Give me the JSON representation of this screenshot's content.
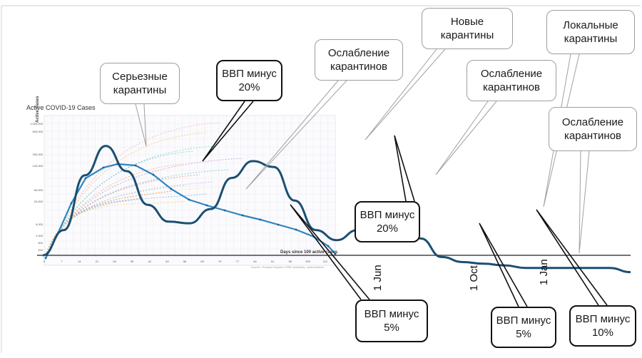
{
  "chart_data": {
    "type": "line",
    "title": "Active COVID-19 Cases",
    "inset": {
      "ylabel": "Active Cases",
      "xlabel": "Days since 100 active cases",
      "y_ticks": [
        "1,000,000",
        "500,000",
        "200,000",
        "100,000",
        "50,000",
        "20,000",
        "5,000",
        "1,000",
        "500",
        "200"
      ],
      "x_ticks": [
        "0",
        "7",
        "14",
        "21",
        "28",
        "35",
        "42",
        "49",
        "56",
        "63",
        "70",
        "77",
        "84",
        "91",
        "98",
        "105",
        "112"
      ],
      "source": "Source: Thomas Hopkins CSSE worldwide, worldometers"
    },
    "date_labels": [
      "1 Jun",
      "1 Oct",
      "1 Jan"
    ],
    "series": [
      {
        "role": "main-scenario",
        "color": "#1b4f72",
        "x": [
          0,
          30,
          60,
          90,
          120,
          150,
          180,
          210,
          240,
          270,
          300,
          330,
          360,
          390,
          420,
          450,
          480,
          510,
          540,
          570,
          600,
          630,
          660,
          690,
          720,
          750,
          780,
          810,
          840
        ],
        "y": [
          0,
          0.3,
          0.95,
          1.3,
          1.0,
          0.6,
          0.4,
          0.38,
          0.55,
          0.92,
          1.12,
          1.05,
          0.65,
          0.3,
          0.18,
          0.3,
          0.4,
          0.4,
          0.2,
          -0.02,
          -0.08,
          -0.1,
          -0.12,
          -0.15,
          -0.15,
          -0.15,
          -0.15,
          -0.15,
          -0.2
        ]
      },
      {
        "role": "inset-decline",
        "color": "#2e86c1"
      },
      {
        "role": "inset-background-countries",
        "color": "#cccccc"
      }
    ]
  },
  "callouts": [
    {
      "id": "serious-quarantines",
      "text": "Серьезные\nкарантины",
      "style": "grey"
    },
    {
      "id": "gdp-minus-20-left",
      "text": "ВВП минус\n20%",
      "style": "black"
    },
    {
      "id": "easing-1",
      "text": "Ослабление\nкарантинов",
      "style": "grey"
    },
    {
      "id": "new-quarantines",
      "text": "Новые\nкарантины",
      "style": "grey"
    },
    {
      "id": "easing-2",
      "text": "Ослабление\nкарантинов",
      "style": "grey"
    },
    {
      "id": "local-quarantines",
      "text": "Локальные\nкарантины",
      "style": "grey"
    },
    {
      "id": "easing-3",
      "text": "Ослабление\nкарантинов",
      "style": "grey"
    },
    {
      "id": "gdp-minus-20-right",
      "text": "ВВП минус\n20%",
      "style": "black"
    },
    {
      "id": "gdp-minus-5-first",
      "text": "ВВП минус\n5%",
      "style": "black"
    },
    {
      "id": "gdp-minus-5-second",
      "text": "ВВП минус\n5%",
      "style": "black"
    },
    {
      "id": "gdp-minus-10",
      "text": "ВВП минус\n10%",
      "style": "black"
    }
  ]
}
